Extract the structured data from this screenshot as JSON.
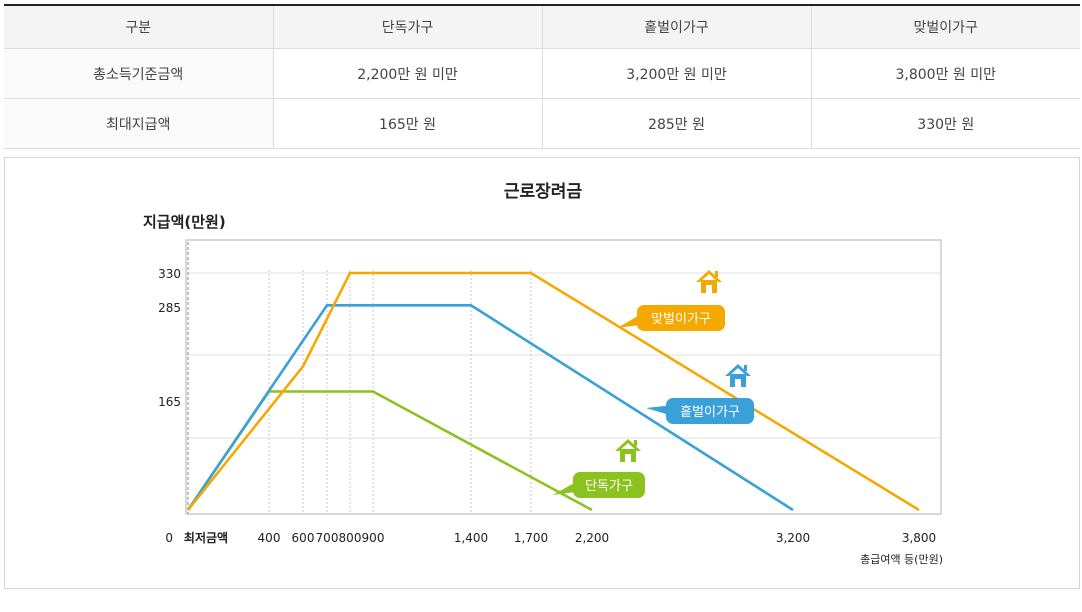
{
  "table": {
    "headers": [
      "구분",
      "단독가구",
      "홑벌이가구",
      "맞벌이가구"
    ],
    "rows": [
      {
        "label": "총소득기준금액",
        "cells": [
          "2,200만 원 미만",
          "3,200만 원 미만",
          "3,800만 원 미만"
        ]
      },
      {
        "label": "최대지급액",
        "cells": [
          "165만 원",
          "285만 원",
          "330만 원"
        ]
      }
    ]
  },
  "chart_data": {
    "type": "line",
    "title": "근로장려금",
    "ylabel": "지급액(만원)",
    "xlabel": "총급여액 등(만원)",
    "ylim": [
      0,
      330
    ],
    "y_ticks": [
      0,
      165,
      285,
      330
    ],
    "x_tick_labels": [
      "최저금액",
      "400",
      "600",
      "700",
      "800",
      "900",
      "1,400",
      "1,700",
      "2,200",
      "3,200",
      "3,800"
    ],
    "series": [
      {
        "name": "단독가구",
        "color": "#8cc21f",
        "points": [
          {
            "x": 0,
            "y": 0
          },
          {
            "x": 400,
            "y": 165
          },
          {
            "x": 900,
            "y": 165
          },
          {
            "x": 2200,
            "y": 0
          }
        ]
      },
      {
        "name": "홑벌이가구",
        "color": "#3aa0d8",
        "points": [
          {
            "x": 0,
            "y": 0
          },
          {
            "x": 700,
            "y": 285
          },
          {
            "x": 1400,
            "y": 285
          },
          {
            "x": 3200,
            "y": 0
          }
        ]
      },
      {
        "name": "맞벌이가구",
        "color": "#f5a800",
        "points": [
          {
            "x": 0,
            "y": 0
          },
          {
            "x": 600,
            "y": 200
          },
          {
            "x": 800,
            "y": 330
          },
          {
            "x": 1700,
            "y": 330
          },
          {
            "x": 3800,
            "y": 0
          }
        ]
      }
    ],
    "grid": true,
    "icon": "house-icon"
  }
}
